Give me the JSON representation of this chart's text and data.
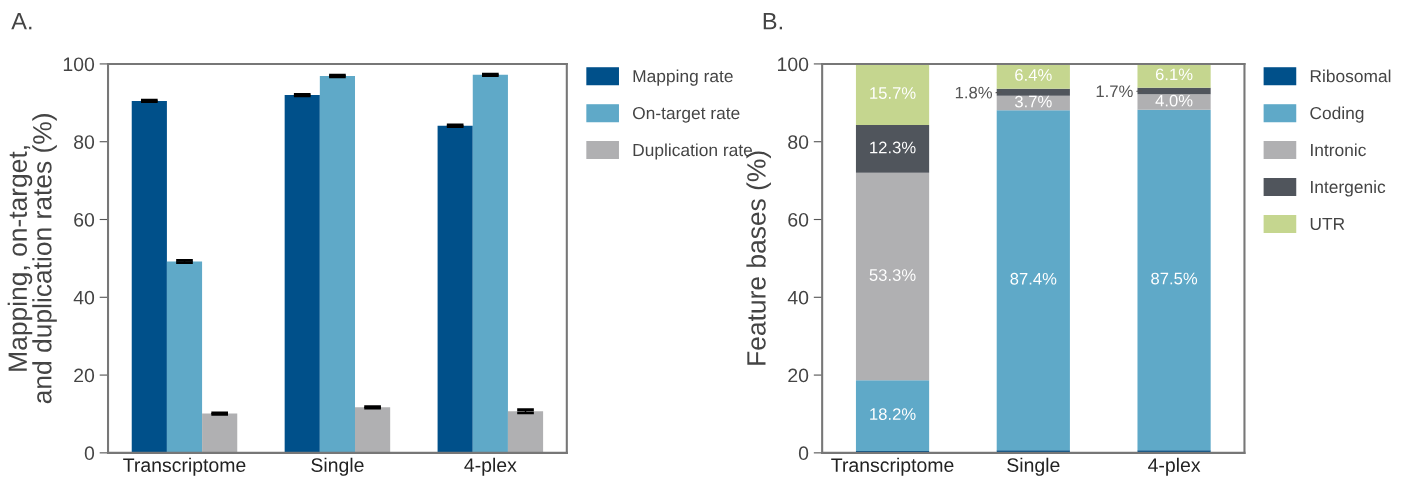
{
  "chart_data": [
    {
      "type": "bar",
      "title": "A.",
      "ylabel": "Mapping, on-target,\nand duplication rates (%)",
      "categories": [
        "Transcriptome",
        "Single",
        "4-plex"
      ],
      "ylim": [
        0,
        100
      ],
      "yticks": [
        0,
        20,
        40,
        60,
        80,
        100
      ],
      "grid": false,
      "legend": "top right",
      "series": [
        {
          "name": "Mapping rate",
          "color": "#00508a",
          "values": [
            90.5,
            92.0,
            84.1
          ],
          "errors": [
            0.2,
            0.2,
            0.2
          ]
        },
        {
          "name": "On-target rate",
          "color": "#5fa9c8",
          "values": [
            49.2,
            96.9,
            97.2
          ],
          "errors": [
            0.3,
            0.2,
            0.2
          ]
        },
        {
          "name": "Duplication rate",
          "color": "#b0b0b2",
          "values": [
            10.1,
            11.7,
            10.7
          ],
          "errors": [
            0.2,
            0.2,
            0.4
          ]
        }
      ]
    },
    {
      "type": "bar",
      "stacked": true,
      "title": "B.",
      "ylabel": "Feature bases (%)",
      "categories": [
        "Transcriptome",
        "Single",
        "4-plex"
      ],
      "ylim": [
        0,
        100
      ],
      "yticks": [
        0,
        20,
        40,
        60,
        80,
        100
      ],
      "grid": false,
      "legend": "top right",
      "series": [
        {
          "name": "Ribosomal",
          "color": "#00508a",
          "values": [
            0.5,
            0.7,
            0.7
          ],
          "value_labels": [
            null,
            null,
            null
          ]
        },
        {
          "name": "Coding",
          "color": "#5fa9c8",
          "values": [
            18.2,
            87.4,
            87.5
          ],
          "value_labels": [
            "18.2%",
            "87.4%",
            "87.5%"
          ]
        },
        {
          "name": "Intronic",
          "color": "#b0b0b2",
          "values": [
            53.3,
            3.7,
            4.0
          ],
          "value_labels": [
            "53.3%",
            "3.7%",
            "4.0%"
          ]
        },
        {
          "name": "Intergenic",
          "color": "#50555c",
          "values": [
            12.3,
            1.8,
            1.7
          ],
          "value_labels": [
            "12.3%",
            "1.8%",
            "1.7%"
          ]
        },
        {
          "name": "UTR",
          "color": "#c5d68f",
          "values": [
            15.7,
            6.4,
            6.1
          ],
          "value_labels": [
            "15.7%",
            "6.4%",
            "6.1%"
          ]
        }
      ]
    }
  ]
}
